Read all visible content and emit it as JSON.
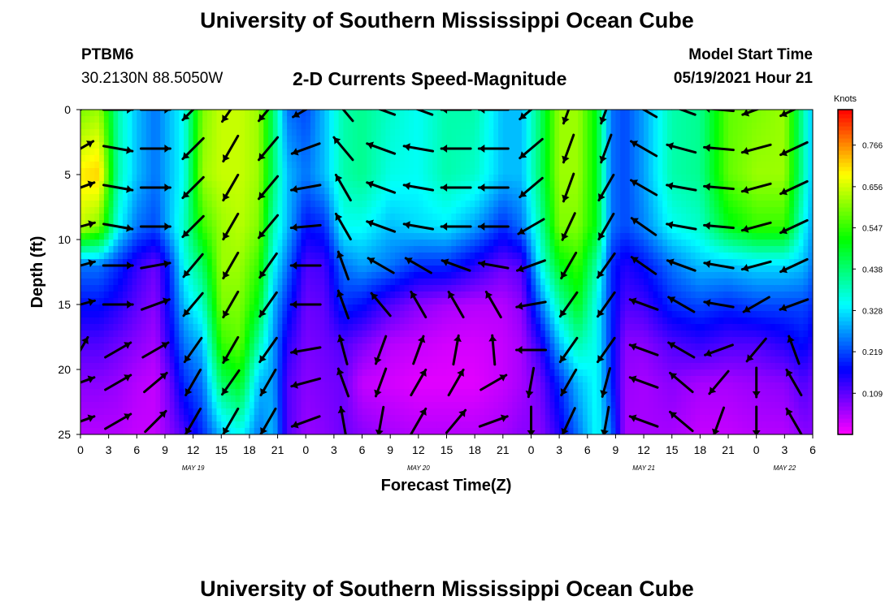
{
  "header": {
    "title": "University of Southern Mississippi Ocean Cube",
    "station_id": "PTBM6",
    "station_coords": "30.2130N  88.5050W",
    "plot_title": "2-D Currents Speed-Magnitude",
    "model_start_label": "Model Start Time",
    "model_start_value": "05/19/2021 Hour 21",
    "footer_title": "University of Southern Mississippi Ocean Cube"
  },
  "chart_data": {
    "type": "heatmap",
    "title": "2-D Currents Speed-Magnitude",
    "xlabel": "Forecast Time(Z)",
    "ylabel": "Depth (ft)",
    "x_tick_labels": [
      "0",
      "3",
      "6",
      "9",
      "12",
      "15",
      "18",
      "21",
      "0",
      "3",
      "6",
      "9",
      "12",
      "15",
      "18",
      "21",
      "0",
      "3",
      "6",
      "9",
      "12",
      "15",
      "18",
      "21",
      "0",
      "3",
      "6"
    ],
    "x_range_hours": [
      0,
      78
    ],
    "date_labels": [
      {
        "label": "MAY 19",
        "hour": 12
      },
      {
        "label": "MAY 20",
        "hour": 36
      },
      {
        "label": "MAY 21",
        "hour": 60
      },
      {
        "label": "MAY 22",
        "hour": 75
      }
    ],
    "y_ticks": [
      0,
      5,
      10,
      15,
      20,
      25
    ],
    "y_range": [
      0,
      25
    ],
    "colorbar": {
      "unit": "Knots",
      "ticks": [
        0.109,
        0.219,
        0.328,
        0.438,
        0.547,
        0.656,
        0.766
      ],
      "range": [
        0.0,
        0.86
      ]
    },
    "speed_by_hour_surface_to_bottom": {
      "depth_nodes_ft": [
        0,
        5,
        9,
        12,
        15,
        18,
        21,
        25
      ],
      "columns": [
        {
          "hour": 0,
          "speed": [
            0.6,
            0.7,
            0.65,
            0.25,
            0.18,
            0.12,
            0.08,
            0.05
          ]
        },
        {
          "hour": 2,
          "speed": [
            0.62,
            0.72,
            0.6,
            0.25,
            0.18,
            0.12,
            0.08,
            0.05
          ]
        },
        {
          "hour": 4,
          "speed": [
            0.4,
            0.4,
            0.35,
            0.2,
            0.15,
            0.1,
            0.07,
            0.05
          ]
        },
        {
          "hour": 6,
          "speed": [
            0.3,
            0.3,
            0.25,
            0.14,
            0.11,
            0.08,
            0.05,
            0.04
          ]
        },
        {
          "hour": 8,
          "speed": [
            0.25,
            0.25,
            0.22,
            0.1,
            0.08,
            0.06,
            0.04,
            0.04
          ]
        },
        {
          "hour": 9.5,
          "speed": [
            0.3,
            0.3,
            0.3,
            0.2,
            0.18,
            0.15,
            0.1,
            0.08
          ]
        },
        {
          "hour": 11,
          "speed": [
            0.35,
            0.35,
            0.38,
            0.35,
            0.3,
            0.25,
            0.2,
            0.12
          ]
        },
        {
          "hour": 13,
          "speed": [
            0.6,
            0.62,
            0.55,
            0.45,
            0.38,
            0.3,
            0.25,
            0.2
          ]
        },
        {
          "hour": 15,
          "speed": [
            0.65,
            0.65,
            0.62,
            0.62,
            0.6,
            0.55,
            0.45,
            0.3
          ]
        },
        {
          "hour": 17,
          "speed": [
            0.65,
            0.65,
            0.64,
            0.62,
            0.6,
            0.58,
            0.5,
            0.35
          ]
        },
        {
          "hour": 19,
          "speed": [
            0.62,
            0.62,
            0.6,
            0.55,
            0.5,
            0.4,
            0.3,
            0.25
          ]
        },
        {
          "hour": 20.5,
          "speed": [
            0.45,
            0.45,
            0.4,
            0.35,
            0.3,
            0.28,
            0.28,
            0.3
          ]
        },
        {
          "hour": 22,
          "speed": [
            0.25,
            0.3,
            0.3,
            0.25,
            0.2,
            0.15,
            0.12,
            0.12
          ]
        },
        {
          "hour": 24,
          "speed": [
            0.22,
            0.25,
            0.18,
            0.12,
            0.1,
            0.09,
            0.08,
            0.07
          ]
        },
        {
          "hour": 26,
          "speed": [
            0.3,
            0.3,
            0.2,
            0.13,
            0.11,
            0.1,
            0.09,
            0.08
          ]
        },
        {
          "hour": 28,
          "speed": [
            0.4,
            0.4,
            0.35,
            0.25,
            0.2,
            0.12,
            0.1,
            0.1
          ]
        },
        {
          "hour": 30,
          "speed": [
            0.42,
            0.42,
            0.35,
            0.28,
            0.18,
            0.09,
            0.04,
            0.08
          ]
        },
        {
          "hour": 33,
          "speed": [
            0.38,
            0.36,
            0.3,
            0.25,
            0.12,
            0.05,
            0.03,
            0.06
          ]
        },
        {
          "hour": 36,
          "speed": [
            0.35,
            0.35,
            0.32,
            0.2,
            0.08,
            0.04,
            0.02,
            0.05
          ]
        },
        {
          "hour": 39,
          "speed": [
            0.4,
            0.4,
            0.33,
            0.2,
            0.06,
            0.03,
            0.02,
            0.05
          ]
        },
        {
          "hour": 42,
          "speed": [
            0.4,
            0.38,
            0.28,
            0.15,
            0.05,
            0.03,
            0.02,
            0.05
          ]
        },
        {
          "hour": 45,
          "speed": [
            0.3,
            0.3,
            0.2,
            0.1,
            0.05,
            0.04,
            0.04,
            0.06
          ]
        },
        {
          "hour": 47,
          "speed": [
            0.3,
            0.3,
            0.25,
            0.12,
            0.08,
            0.06,
            0.06,
            0.08
          ]
        },
        {
          "hour": 49,
          "speed": [
            0.45,
            0.45,
            0.4,
            0.35,
            0.25,
            0.15,
            0.1,
            0.08
          ]
        },
        {
          "hour": 51,
          "speed": [
            0.62,
            0.62,
            0.6,
            0.5,
            0.4,
            0.3,
            0.2,
            0.15
          ]
        },
        {
          "hour": 53,
          "speed": [
            0.62,
            0.62,
            0.6,
            0.55,
            0.5,
            0.4,
            0.3,
            0.25
          ]
        },
        {
          "hour": 55,
          "speed": [
            0.5,
            0.5,
            0.5,
            0.4,
            0.35,
            0.35,
            0.35,
            0.35
          ]
        },
        {
          "hour": 56.5,
          "speed": [
            0.25,
            0.25,
            0.25,
            0.2,
            0.2,
            0.2,
            0.2,
            0.25
          ]
        },
        {
          "hour": 58,
          "speed": [
            0.22,
            0.22,
            0.22,
            0.15,
            0.12,
            0.08,
            0.07,
            0.06
          ]
        },
        {
          "hour": 60,
          "speed": [
            0.28,
            0.28,
            0.26,
            0.18,
            0.13,
            0.08,
            0.06,
            0.06
          ]
        },
        {
          "hour": 63,
          "speed": [
            0.4,
            0.4,
            0.35,
            0.25,
            0.2,
            0.12,
            0.08,
            0.06
          ]
        },
        {
          "hour": 66,
          "speed": [
            0.42,
            0.42,
            0.38,
            0.3,
            0.22,
            0.14,
            0.06,
            0.04
          ]
        },
        {
          "hour": 69,
          "speed": [
            0.58,
            0.58,
            0.5,
            0.3,
            0.2,
            0.12,
            0.06,
            0.04
          ]
        },
        {
          "hour": 72,
          "speed": [
            0.6,
            0.62,
            0.55,
            0.32,
            0.22,
            0.12,
            0.07,
            0.05
          ]
        },
        {
          "hour": 75,
          "speed": [
            0.62,
            0.62,
            0.55,
            0.32,
            0.22,
            0.15,
            0.08,
            0.05
          ]
        },
        {
          "hour": 77,
          "speed": [
            0.4,
            0.4,
            0.35,
            0.3,
            0.22,
            0.18,
            0.12,
            0.08
          ]
        },
        {
          "hour": 78,
          "speed": [
            0.3,
            0.3,
            0.28,
            0.25,
            0.2,
            0.15,
            0.1,
            0.08
          ]
        }
      ]
    },
    "current_vectors": {
      "depths_ft": [
        0,
        3,
        6,
        9,
        12,
        15,
        18.5,
        21,
        24
      ],
      "columns": [
        {
          "hour": 0,
          "dir_deg": [
            60,
            60,
            70,
            75,
            75,
            75,
            30,
            70,
            70
          ]
        },
        {
          "hour": 4,
          "dir_deg": [
            90,
            100,
            100,
            100,
            90,
            90,
            60,
            60,
            60
          ]
        },
        {
          "hour": 8,
          "dir_deg": [
            90,
            90,
            90,
            90,
            80,
            70,
            60,
            50,
            45
          ]
        },
        {
          "hour": 12,
          "dir_deg": [
            225,
            225,
            225,
            225,
            220,
            220,
            215,
            210,
            210
          ]
        },
        {
          "hour": 16,
          "dir_deg": [
            215,
            210,
            210,
            210,
            210,
            210,
            210,
            215,
            210
          ]
        },
        {
          "hour": 20,
          "dir_deg": [
            220,
            220,
            220,
            220,
            215,
            215,
            215,
            210,
            210
          ]
        },
        {
          "hour": 24,
          "dir_deg": [
            240,
            250,
            260,
            265,
            270,
            270,
            260,
            255,
            250
          ]
        },
        {
          "hour": 28,
          "dir_deg": [
            320,
            320,
            330,
            330,
            340,
            340,
            345,
            340,
            350
          ]
        },
        {
          "hour": 32,
          "dir_deg": [
            290,
            290,
            290,
            290,
            300,
            320,
            200,
            200,
            190
          ]
        },
        {
          "hour": 36,
          "dir_deg": [
            290,
            280,
            280,
            280,
            300,
            330,
            20,
            30,
            30
          ]
        },
        {
          "hour": 40,
          "dir_deg": [
            270,
            270,
            270,
            270,
            290,
            330,
            10,
            30,
            40
          ]
        },
        {
          "hour": 44,
          "dir_deg": [
            270,
            270,
            270,
            270,
            280,
            330,
            355,
            60,
            70
          ]
        },
        {
          "hour": 48,
          "dir_deg": [
            230,
            230,
            230,
            240,
            250,
            260,
            270,
            190,
            180
          ]
        },
        {
          "hour": 52,
          "dir_deg": [
            200,
            200,
            200,
            205,
            210,
            215,
            215,
            210,
            205
          ]
        },
        {
          "hour": 56,
          "dir_deg": [
            200,
            200,
            210,
            210,
            215,
            215,
            215,
            195,
            190
          ]
        },
        {
          "hour": 60,
          "dir_deg": [
            300,
            300,
            300,
            305,
            305,
            290,
            290,
            290,
            290
          ]
        },
        {
          "hour": 64,
          "dir_deg": [
            290,
            285,
            280,
            280,
            290,
            300,
            300,
            310,
            310
          ]
        },
        {
          "hour": 68,
          "dir_deg": [
            275,
            275,
            275,
            275,
            280,
            280,
            250,
            220,
            200
          ]
        },
        {
          "hour": 72,
          "dir_deg": [
            250,
            255,
            255,
            255,
            255,
            240,
            220,
            180,
            180
          ]
        },
        {
          "hour": 76,
          "dir_deg": [
            245,
            245,
            245,
            245,
            245,
            250,
            340,
            330,
            330
          ]
        }
      ]
    }
  }
}
